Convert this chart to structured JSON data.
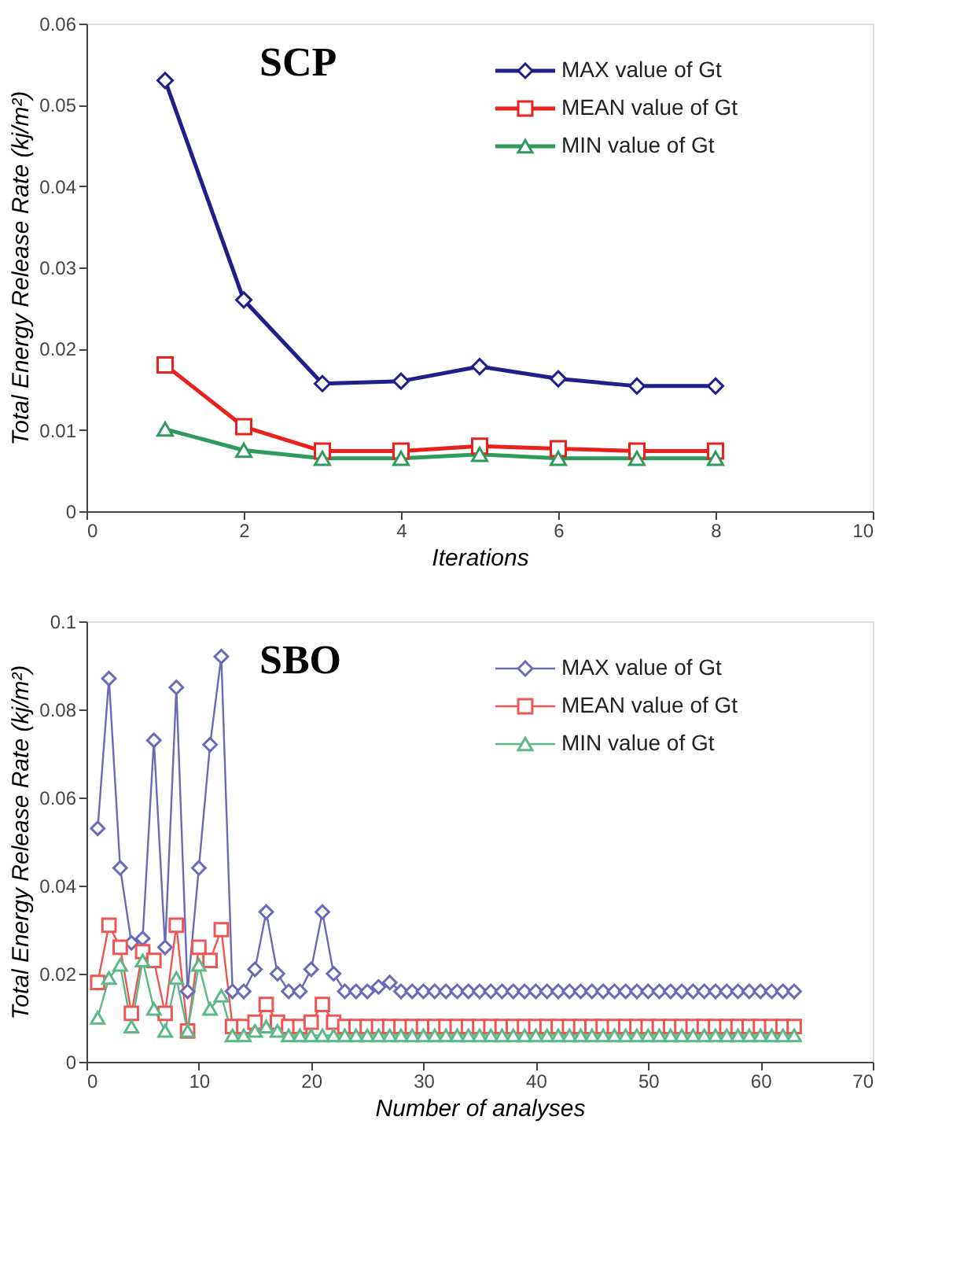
{
  "chart_data": [
    {
      "type": "line",
      "title": "SCP",
      "xlabel": "Iterations",
      "ylabel": "Total Energy Release Rate (kj/m²)",
      "x": [
        1,
        2,
        3,
        4,
        5,
        6,
        7,
        8
      ],
      "xlim": [
        0,
        10
      ],
      "xticks": [
        0,
        2,
        4,
        6,
        8,
        10
      ],
      "ylim": [
        0,
        0.06
      ],
      "yticks": [
        0,
        0.01,
        0.02,
        0.03,
        0.04,
        0.05,
        0.06
      ],
      "legend": "top right",
      "grid": false,
      "series": [
        {
          "name": "MAX value of Gt",
          "color": "#1f1f8c",
          "marker": "diamond",
          "values": [
            0.053,
            0.026,
            0.0157,
            0.016,
            0.0178,
            0.0163,
            0.0154,
            0.0154
          ]
        },
        {
          "name": "MEAN value of Gt",
          "color": "#e8211c",
          "marker": "square",
          "values": [
            0.018,
            0.0104,
            0.0074,
            0.0074,
            0.008,
            0.0077,
            0.0074,
            0.0074
          ]
        },
        {
          "name": "MIN value of Gt",
          "color": "#2e9a5c",
          "marker": "triangle",
          "values": [
            0.0101,
            0.0075,
            0.0065,
            0.0065,
            0.007,
            0.0065,
            0.0065,
            0.0065
          ]
        }
      ]
    },
    {
      "type": "line",
      "title": "SBO",
      "xlabel": "Number of analyses",
      "ylabel": "Total Energy Release Rate (kj/m²)",
      "x": [
        1,
        2,
        3,
        4,
        5,
        6,
        7,
        8,
        9,
        10,
        11,
        12,
        13,
        14,
        15,
        16,
        17,
        18,
        19,
        20,
        21,
        22,
        23,
        24,
        25,
        26,
        27,
        28,
        29,
        30,
        31,
        32,
        33,
        34,
        35,
        36,
        37,
        38,
        39,
        40,
        41,
        42,
        43,
        44,
        45,
        46,
        47,
        48,
        49,
        50,
        51,
        52,
        53,
        54,
        55,
        56,
        57,
        58,
        59,
        60,
        61,
        62,
        63
      ],
      "xlim": [
        0,
        70
      ],
      "xticks": [
        0,
        10,
        20,
        30,
        40,
        50,
        60,
        70
      ],
      "ylim": [
        0,
        0.1
      ],
      "yticks": [
        0,
        0.02,
        0.04,
        0.06,
        0.08,
        0.1
      ],
      "legend": "top right",
      "grid": false,
      "series": [
        {
          "name": "MAX value of Gt",
          "color": "#6a6ab8",
          "marker": "diamond",
          "values": [
            0.053,
            0.087,
            0.044,
            0.027,
            0.028,
            0.073,
            0.026,
            0.085,
            0.016,
            0.044,
            0.072,
            0.092,
            0.016,
            0.016,
            0.021,
            0.034,
            0.02,
            0.016,
            0.016,
            0.021,
            0.034,
            0.02,
            0.016,
            0.016,
            0.016,
            0.017,
            0.018,
            0.016,
            0.016,
            0.016,
            0.016,
            0.016,
            0.016,
            0.016,
            0.016,
            0.016,
            0.016,
            0.016,
            0.016,
            0.016,
            0.016,
            0.016,
            0.016,
            0.016,
            0.016,
            0.016,
            0.016,
            0.016,
            0.016,
            0.016,
            0.016,
            0.016,
            0.016,
            0.016,
            0.016,
            0.016,
            0.016,
            0.016,
            0.016,
            0.016,
            0.016,
            0.016,
            0.016
          ]
        },
        {
          "name": "MEAN value of Gt",
          "color": "#ee5555",
          "marker": "square",
          "values": [
            0.018,
            0.031,
            0.026,
            0.011,
            0.025,
            0.023,
            0.011,
            0.031,
            0.007,
            0.026,
            0.023,
            0.03,
            0.008,
            0.008,
            0.009,
            0.013,
            0.009,
            0.008,
            0.008,
            0.009,
            0.013,
            0.009,
            0.008,
            0.008,
            0.008,
            0.008,
            0.008,
            0.008,
            0.008,
            0.008,
            0.008,
            0.008,
            0.008,
            0.008,
            0.008,
            0.008,
            0.008,
            0.008,
            0.008,
            0.008,
            0.008,
            0.008,
            0.008,
            0.008,
            0.008,
            0.008,
            0.008,
            0.008,
            0.008,
            0.008,
            0.008,
            0.008,
            0.008,
            0.008,
            0.008,
            0.008,
            0.008,
            0.008,
            0.008,
            0.008,
            0.008,
            0.008,
            0.008
          ]
        },
        {
          "name": "MIN value of Gt",
          "color": "#5cb886",
          "marker": "triangle",
          "values": [
            0.01,
            0.019,
            0.022,
            0.008,
            0.023,
            0.012,
            0.007,
            0.019,
            0.007,
            0.022,
            0.012,
            0.015,
            0.006,
            0.006,
            0.007,
            0.008,
            0.007,
            0.006,
            0.006,
            0.006,
            0.006,
            0.006,
            0.006,
            0.006,
            0.006,
            0.006,
            0.006,
            0.006,
            0.006,
            0.006,
            0.006,
            0.006,
            0.006,
            0.006,
            0.006,
            0.006,
            0.006,
            0.006,
            0.006,
            0.006,
            0.006,
            0.006,
            0.006,
            0.006,
            0.006,
            0.006,
            0.006,
            0.006,
            0.006,
            0.006,
            0.006,
            0.006,
            0.006,
            0.006,
            0.006,
            0.006,
            0.006,
            0.006,
            0.006,
            0.006,
            0.006,
            0.006,
            0.006
          ]
        }
      ]
    }
  ]
}
